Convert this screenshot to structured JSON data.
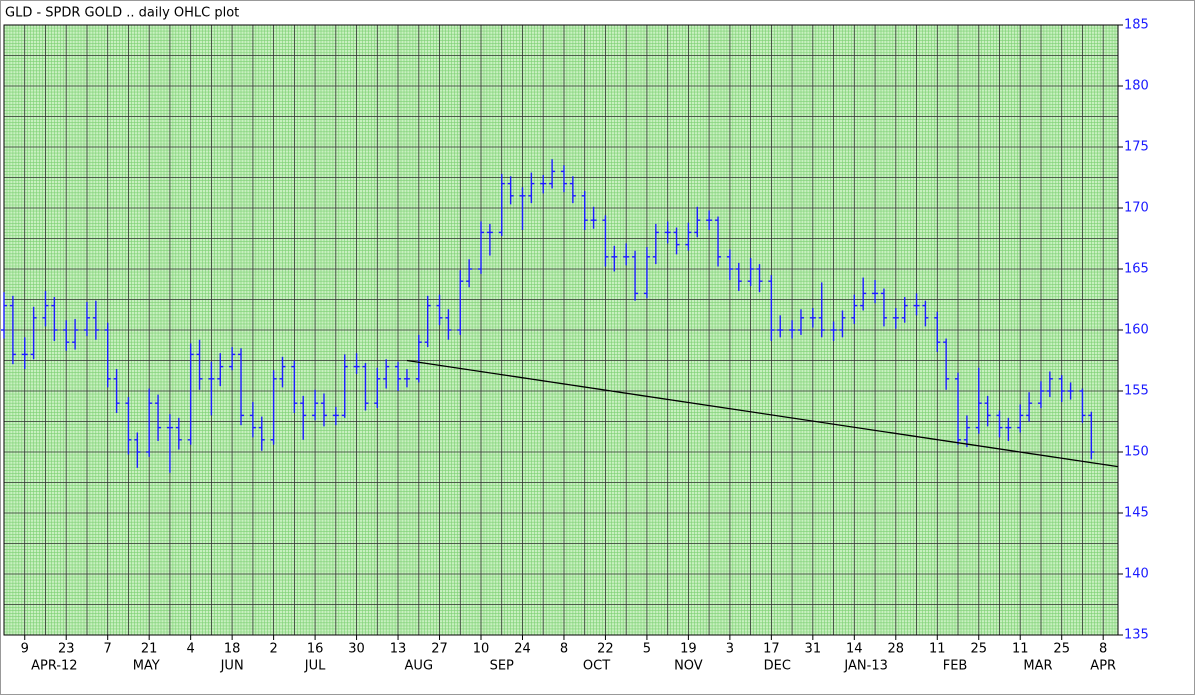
{
  "chart_data": {
    "type": "ohlc",
    "title": "GLD - SPDR GOLD .. daily OHLC plot",
    "x": [
      "2012-04-02",
      "2012-04-05",
      "2012-04-09",
      "2012-04-12",
      "2012-04-16",
      "2012-04-19",
      "2012-04-23",
      "2012-04-26",
      "2012-04-30",
      "2012-05-03",
      "2012-05-07",
      "2012-05-10",
      "2012-05-14",
      "2012-05-17",
      "2012-05-21",
      "2012-05-24",
      "2012-05-28",
      "2012-05-31",
      "2012-06-04",
      "2012-06-07",
      "2012-06-11",
      "2012-06-14",
      "2012-06-18",
      "2012-06-21",
      "2012-06-25",
      "2012-06-28",
      "2012-07-02",
      "2012-07-05",
      "2012-07-09",
      "2012-07-12",
      "2012-07-16",
      "2012-07-19",
      "2012-07-23",
      "2012-07-26",
      "2012-07-30",
      "2012-08-02",
      "2012-08-06",
      "2012-08-09",
      "2012-08-13",
      "2012-08-16",
      "2012-08-20",
      "2012-08-23",
      "2012-08-27",
      "2012-08-30",
      "2012-09-03",
      "2012-09-06",
      "2012-09-10",
      "2012-09-13",
      "2012-09-17",
      "2012-09-20",
      "2012-09-24",
      "2012-09-27",
      "2012-10-01",
      "2012-10-04",
      "2012-10-08",
      "2012-10-11",
      "2012-10-15",
      "2012-10-18",
      "2012-10-22",
      "2012-10-25",
      "2012-10-29",
      "2012-11-01",
      "2012-11-05",
      "2012-11-08",
      "2012-11-12",
      "2012-11-15",
      "2012-11-19",
      "2012-11-22",
      "2012-11-26",
      "2012-11-29",
      "2012-12-03",
      "2012-12-06",
      "2012-12-10",
      "2012-12-13",
      "2012-12-17",
      "2012-12-20",
      "2012-12-24",
      "2012-12-27",
      "2012-12-31",
      "2013-01-03",
      "2013-01-07",
      "2013-01-10",
      "2013-01-14",
      "2013-01-17",
      "2013-01-21",
      "2013-01-24",
      "2013-01-28",
      "2013-01-31",
      "2013-02-04",
      "2013-02-07",
      "2013-02-11",
      "2013-02-14",
      "2013-02-18",
      "2013-02-21",
      "2013-02-25",
      "2013-02-28",
      "2013-03-04",
      "2013-03-07",
      "2013-03-11",
      "2013-03-14",
      "2013-03-18",
      "2013-03-21",
      "2013-03-25",
      "2013-03-28",
      "2013-04-01",
      "2013-04-04"
    ],
    "ohlc": [
      [
        160,
        163.1,
        159.3,
        162
      ],
      [
        162,
        162.8,
        157.2,
        158
      ],
      [
        158,
        159.4,
        156.8,
        158
      ],
      [
        158,
        161.9,
        157.6,
        161
      ],
      [
        161,
        163.2,
        160.3,
        162
      ],
      [
        162,
        162.7,
        159.1,
        160
      ],
      [
        160,
        160.8,
        158.3,
        159
      ],
      [
        159,
        160.9,
        158.4,
        160
      ],
      [
        160,
        162.3,
        159.5,
        161
      ],
      [
        161,
        162.4,
        159.2,
        160
      ],
      [
        160,
        160.6,
        155.3,
        156
      ],
      [
        156,
        156.8,
        153.2,
        154
      ],
      [
        154,
        154.5,
        149.8,
        151
      ],
      [
        151,
        151.6,
        148.7,
        150
      ],
      [
        150,
        155.2,
        149.6,
        154
      ],
      [
        154,
        154.7,
        150.9,
        152
      ],
      [
        152,
        153.1,
        148.3,
        152
      ],
      [
        152,
        152.8,
        150.2,
        151
      ],
      [
        151,
        158.9,
        150.6,
        158
      ],
      [
        158,
        159.2,
        155.1,
        156
      ],
      [
        156,
        157.4,
        153.0,
        156
      ],
      [
        156,
        158.1,
        155.4,
        157
      ],
      [
        157,
        158.6,
        156.7,
        158
      ],
      [
        158,
        158.5,
        152.2,
        153
      ],
      [
        153,
        154.1,
        151.2,
        152
      ],
      [
        152,
        152.9,
        150.1,
        151
      ],
      [
        151,
        156.7,
        150.6,
        156
      ],
      [
        156,
        157.8,
        155.3,
        157
      ],
      [
        157,
        157.5,
        153.2,
        154
      ],
      [
        154,
        154.6,
        151.0,
        153
      ],
      [
        153,
        155.1,
        152.6,
        154
      ],
      [
        154,
        154.8,
        152.1,
        153
      ],
      [
        153,
        153.7,
        152.2,
        153
      ],
      [
        153,
        158.0,
        152.8,
        157
      ],
      [
        157,
        158.1,
        156.4,
        157
      ],
      [
        157,
        157.3,
        153.4,
        154
      ],
      [
        154,
        156.9,
        153.6,
        156
      ],
      [
        156,
        157.6,
        155.2,
        157
      ],
      [
        157,
        157.4,
        155.0,
        156
      ],
      [
        156,
        156.8,
        155.3,
        156
      ],
      [
        156,
        159.6,
        155.7,
        159
      ],
      [
        159,
        162.8,
        158.6,
        162
      ],
      [
        162,
        162.9,
        160.4,
        161
      ],
      [
        161,
        161.7,
        159.2,
        160
      ],
      [
        160,
        164.9,
        159.6,
        164
      ],
      [
        164,
        165.8,
        163.5,
        165
      ],
      [
        165,
        168.9,
        164.6,
        168
      ],
      [
        168,
        168.7,
        166.1,
        168
      ],
      [
        168,
        172.8,
        167.7,
        172
      ],
      [
        172,
        172.6,
        170.3,
        171
      ],
      [
        171,
        171.7,
        168.2,
        171
      ],
      [
        171,
        172.9,
        170.4,
        172
      ],
      [
        172,
        172.7,
        171.2,
        172
      ],
      [
        172,
        174.0,
        171.6,
        173
      ],
      [
        173,
        173.5,
        171.3,
        172
      ],
      [
        172,
        172.6,
        170.4,
        171
      ],
      [
        171,
        171.4,
        168.2,
        169
      ],
      [
        169,
        170.1,
        168.3,
        169
      ],
      [
        169,
        169.4,
        165.2,
        166
      ],
      [
        166,
        166.9,
        164.8,
        166
      ],
      [
        166,
        167.1,
        165.3,
        166
      ],
      [
        166,
        166.5,
        162.4,
        163
      ],
      [
        163,
        166.8,
        162.6,
        166
      ],
      [
        166,
        168.7,
        165.4,
        168
      ],
      [
        168,
        168.9,
        167.1,
        168
      ],
      [
        168,
        168.4,
        166.2,
        167
      ],
      [
        167,
        168.8,
        166.5,
        168
      ],
      [
        168,
        170.1,
        167.6,
        169
      ],
      [
        169,
        169.8,
        168.2,
        169
      ],
      [
        169,
        169.3,
        165.2,
        166
      ],
      [
        166,
        166.6,
        164.1,
        165
      ],
      [
        165,
        165.5,
        163.2,
        164
      ],
      [
        164,
        165.9,
        163.6,
        165
      ],
      [
        165,
        165.4,
        163.1,
        164
      ],
      [
        164,
        164.5,
        159.1,
        160
      ],
      [
        160,
        161.2,
        159.4,
        160
      ],
      [
        160,
        160.8,
        159.3,
        160
      ],
      [
        160,
        161.7,
        159.6,
        161
      ],
      [
        161,
        161.8,
        160.2,
        161
      ],
      [
        161,
        163.9,
        159.4,
        160
      ],
      [
        160,
        160.7,
        159.1,
        160
      ],
      [
        160,
        161.6,
        159.4,
        161
      ],
      [
        161,
        162.9,
        160.5,
        162
      ],
      [
        162,
        164.3,
        161.6,
        163
      ],
      [
        163,
        164.1,
        162.2,
        163
      ],
      [
        163,
        163.4,
        160.3,
        161
      ],
      [
        161,
        161.8,
        160.1,
        161
      ],
      [
        161,
        162.7,
        160.6,
        162
      ],
      [
        162,
        163.0,
        161.2,
        162
      ],
      [
        162,
        162.4,
        160.3,
        161
      ],
      [
        161,
        161.5,
        158.2,
        159
      ],
      [
        159,
        159.3,
        155.1,
        156
      ],
      [
        156,
        156.5,
        150.6,
        151
      ],
      [
        151,
        153.0,
        150.4,
        152
      ],
      [
        152,
        156.9,
        151.5,
        154
      ],
      [
        154,
        154.6,
        152.1,
        153
      ],
      [
        153,
        153.4,
        151.2,
        152
      ],
      [
        152,
        152.8,
        150.9,
        152
      ],
      [
        152,
        153.9,
        151.6,
        153
      ],
      [
        153,
        154.9,
        152.5,
        154
      ],
      [
        154,
        155.8,
        153.6,
        155
      ],
      [
        155,
        156.6,
        154.5,
        156
      ],
      [
        156,
        156.3,
        154.1,
        155
      ],
      [
        155,
        155.7,
        154.3,
        155
      ],
      [
        155,
        155.2,
        152.4,
        153
      ],
      [
        153,
        153.3,
        149.4,
        150
      ]
    ],
    "color": "#1a1aff",
    "trendline": {
      "x": [
        "2012-08-16",
        "2013-04-13"
      ],
      "y": [
        157.5,
        148.8
      ],
      "color": "#000000"
    },
    "xlim": [
      "2012-04-02",
      "2013-04-13"
    ],
    "xticks": [
      {
        "value": "2012-04-09",
        "label": "9"
      },
      {
        "value": "2012-04-23",
        "label": "23"
      },
      {
        "value": "2012-05-07",
        "label": "7"
      },
      {
        "value": "2012-05-21",
        "label": "21"
      },
      {
        "value": "2012-06-04",
        "label": "4"
      },
      {
        "value": "2012-06-18",
        "label": "18"
      },
      {
        "value": "2012-07-02",
        "label": "2"
      },
      {
        "value": "2012-07-16",
        "label": "16"
      },
      {
        "value": "2012-07-30",
        "label": "30"
      },
      {
        "value": "2012-08-13",
        "label": "13"
      },
      {
        "value": "2012-08-27",
        "label": "27"
      },
      {
        "value": "2012-09-10",
        "label": "10"
      },
      {
        "value": "2012-09-24",
        "label": "24"
      },
      {
        "value": "2012-10-08",
        "label": "8"
      },
      {
        "value": "2012-10-22",
        "label": "22"
      },
      {
        "value": "2012-11-05",
        "label": "5"
      },
      {
        "value": "2012-11-19",
        "label": "19"
      },
      {
        "value": "2012-12-03",
        "label": "3"
      },
      {
        "value": "2012-12-17",
        "label": "17"
      },
      {
        "value": "2012-12-31",
        "label": "31"
      },
      {
        "value": "2013-01-14",
        "label": "14"
      },
      {
        "value": "2013-01-28",
        "label": "28"
      },
      {
        "value": "2013-02-11",
        "label": "11"
      },
      {
        "value": "2013-02-25",
        "label": "25"
      },
      {
        "value": "2013-03-11",
        "label": "11"
      },
      {
        "value": "2013-03-25",
        "label": "25"
      },
      {
        "value": "2013-04-08",
        "label": "8"
      }
    ],
    "month_labels": [
      {
        "value": "2012-04-19",
        "label": "APR-12"
      },
      {
        "value": "2012-05-20",
        "label": "MAY"
      },
      {
        "value": "2012-06-18",
        "label": "JUN"
      },
      {
        "value": "2012-07-16",
        "label": "JUL"
      },
      {
        "value": "2012-08-20",
        "label": "AUG"
      },
      {
        "value": "2012-09-17",
        "label": "SEP"
      },
      {
        "value": "2012-10-19",
        "label": "OCT"
      },
      {
        "value": "2012-11-19",
        "label": "NOV"
      },
      {
        "value": "2012-12-19",
        "label": "DEC"
      },
      {
        "value": "2013-01-18",
        "label": "JAN-13"
      },
      {
        "value": "2013-02-17",
        "label": "FEB"
      },
      {
        "value": "2013-03-17",
        "label": "MAR"
      },
      {
        "value": "2013-04-08",
        "label": "APR"
      }
    ],
    "ylim": [
      135,
      185
    ],
    "yticks": [
      135,
      140,
      145,
      150,
      155,
      160,
      165,
      170,
      175,
      180,
      185
    ],
    "grid": true
  }
}
